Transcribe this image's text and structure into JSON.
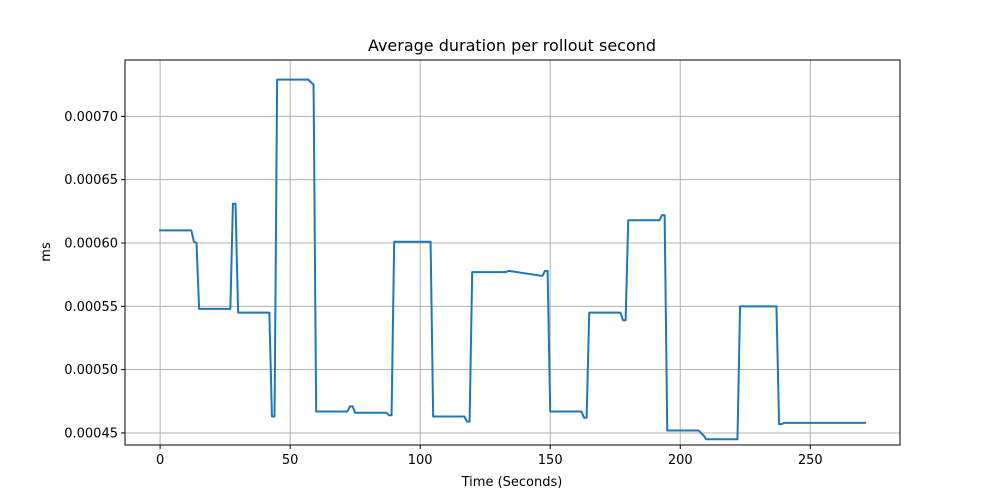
{
  "chart_data": {
    "type": "line",
    "title": "Average duration per rollout second",
    "xlabel": "Time (Seconds)",
    "ylabel": "ms",
    "xlim": [
      -13.5,
      284.5
    ],
    "ylim": [
      0.0004405,
      0.0007445
    ],
    "x_ticks": [
      0,
      50,
      100,
      150,
      200,
      250
    ],
    "x_tick_labels": [
      "0",
      "50",
      "100",
      "150",
      "200",
      "250"
    ],
    "y_ticks": [
      0.00045,
      0.0005,
      0.00055,
      0.0006,
      0.00065,
      0.0007
    ],
    "y_tick_labels": [
      "0.00045",
      "0.00050",
      "0.00055",
      "0.00060",
      "0.00065",
      "0.00070"
    ],
    "grid": true,
    "legend": "none",
    "series": [
      {
        "color": "#1f77b4",
        "x": [
          0,
          12,
          13,
          14,
          15,
          27,
          28,
          29,
          30,
          42,
          43,
          44,
          45,
          57,
          58,
          59,
          60,
          72,
          73,
          74,
          75,
          87,
          88,
          89,
          90,
          104,
          105,
          117,
          118,
          119,
          120,
          133,
          134,
          147,
          148,
          149,
          150,
          162,
          163,
          164,
          165,
          177,
          178,
          179,
          180,
          192,
          193,
          194,
          195,
          207,
          208,
          209,
          210,
          222,
          223,
          224,
          225,
          237,
          238,
          239,
          240,
          271
        ],
        "y": [
          0.00061,
          0.00061,
          0.000601,
          0.0006,
          0.000548,
          0.000548,
          0.000631,
          0.000631,
          0.000545,
          0.000545,
          0.000463,
          0.000463,
          0.000729,
          0.000729,
          0.000727,
          0.000725,
          0.000467,
          0.000467,
          0.000471,
          0.000471,
          0.000466,
          0.000466,
          0.000464,
          0.000464,
          0.000601,
          0.000601,
          0.000463,
          0.000463,
          0.000459,
          0.000459,
          0.000577,
          0.000577,
          0.000578,
          0.000574,
          0.000578,
          0.000578,
          0.000467,
          0.000467,
          0.000462,
          0.000462,
          0.000545,
          0.000545,
          0.000539,
          0.000539,
          0.000618,
          0.000618,
          0.000622,
          0.000622,
          0.000452,
          0.000452,
          0.00045,
          0.000448,
          0.000445,
          0.000445,
          0.00055,
          0.00055,
          0.00055,
          0.00055,
          0.000457,
          0.000457,
          0.000458,
          0.000458
        ]
      }
    ]
  }
}
